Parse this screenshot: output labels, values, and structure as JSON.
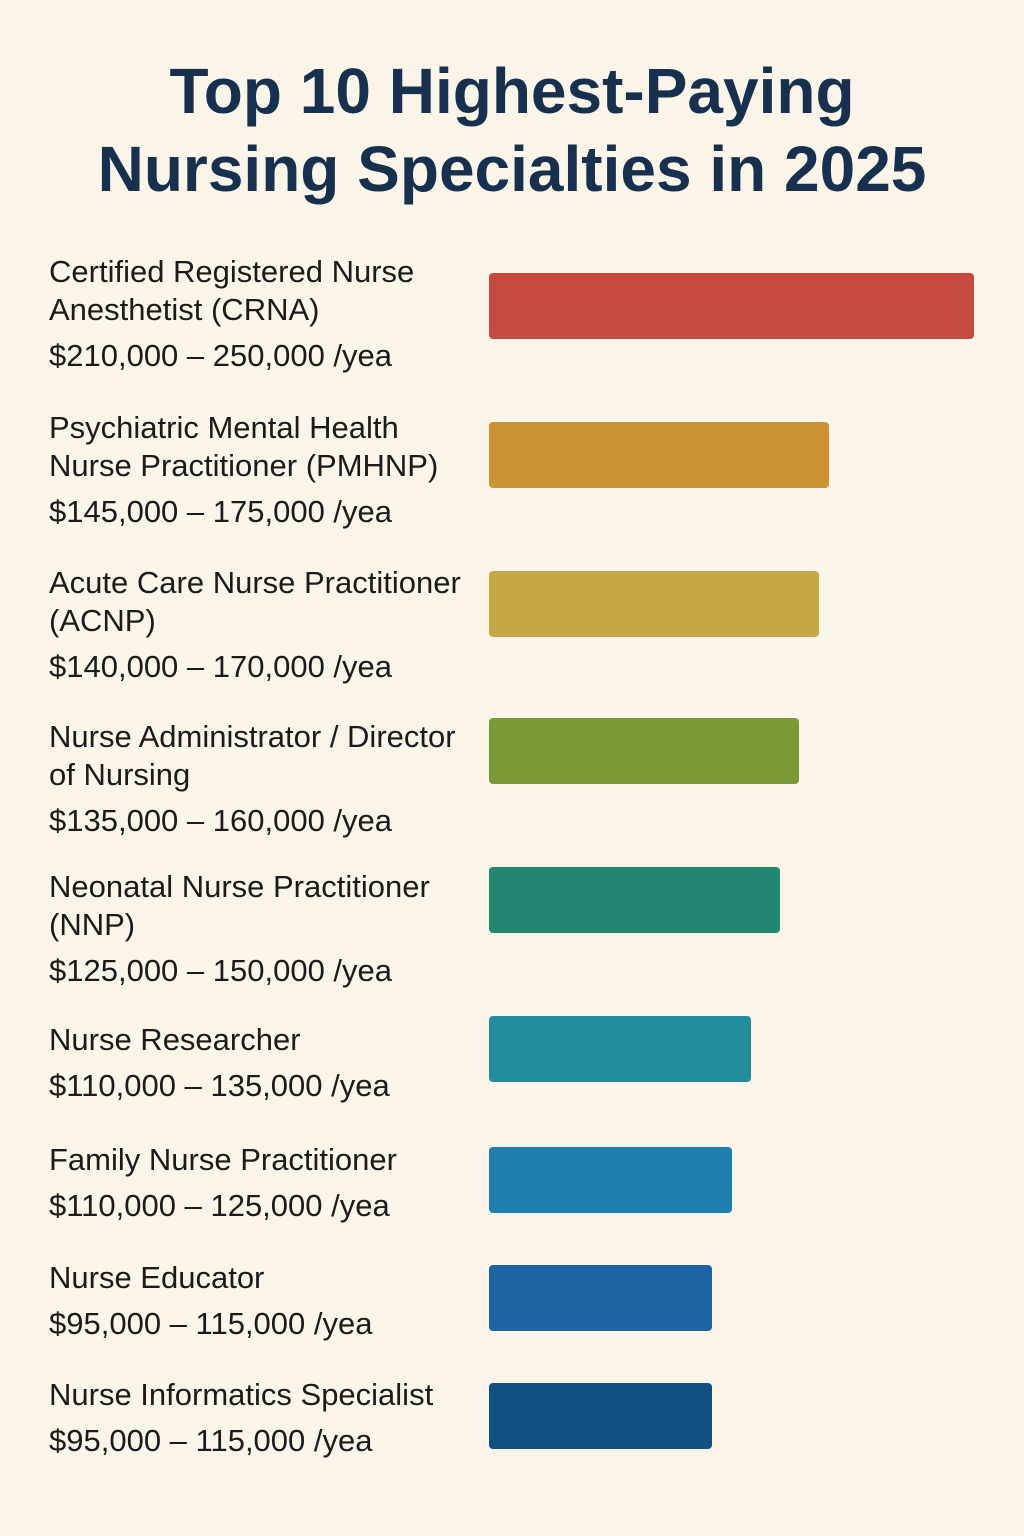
{
  "chart_data": {
    "type": "bar",
    "orientation": "horizontal",
    "title": "Top 10 Highest-Paying Nursing Specialties in 2025",
    "categories": [
      "Certified Registered Nurse Anesthetist (CRNA)",
      "Psychiatric Mental Health Nurse Practitioner (PMHNP)",
      "Acute Care Nurse Practitioner (ACNP)",
      "Nurse Administrator / Director of Nursing",
      "Neonatal Nurse Practitioner (NNP)",
      "Nurse Researcher",
      "Family Nurse Practitioner",
      "Nurse Educator",
      "Nurse Informatics Specialist"
    ],
    "values": [
      250000,
      175000,
      170000,
      160000,
      150000,
      135000,
      125000,
      115000,
      115000
    ],
    "value_labels": [
      "$210,000 – 250,000 /yea",
      "$145,000 – 175,000 /yea",
      "$140,000 – 170,000 /yea",
      "$135,000 – 160,000 /yea",
      "$125,000 – 150,000 /yea",
      "$110,000 – 135,000 /yea",
      "$110,000 – 125,000 /yea",
      "$95,000 – 115,000 /yea",
      "$95,000 – 115,000 /yea"
    ],
    "colors": [
      "#c54a3f",
      "#cc9332",
      "#c6a745",
      "#7a9a37",
      "#238670",
      "#238c9d",
      "#1f7eaf",
      "#1f64a2",
      "#124f82"
    ]
  }
}
